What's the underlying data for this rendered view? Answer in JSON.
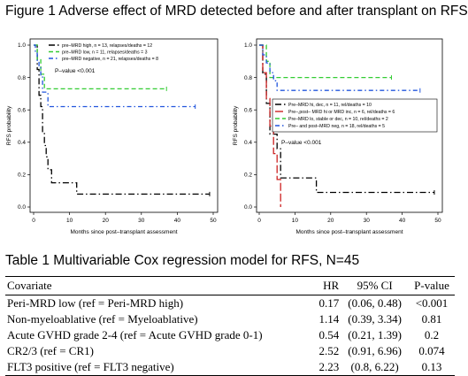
{
  "figure": {
    "title": "Figure 1  Adverse effect of MRD detected before and after transplant on RFS"
  },
  "chart_data": [
    {
      "type": "line",
      "subtype": "kaplan-meier",
      "title": "",
      "xlabel": "Months since post–transplant assessment",
      "ylabel": "RFS probability",
      "xlim": [
        0,
        50
      ],
      "ylim": [
        0,
        1.0
      ],
      "xticks": [
        "0",
        "10",
        "20",
        "30",
        "40",
        "50"
      ],
      "yticks": [
        "0.0",
        "0.2",
        "0.4",
        "0.6",
        "0.8",
        "1.0"
      ],
      "legend_position": "top",
      "pvalue_text": "P–value <0.001",
      "series": [
        {
          "name": "pre–MRD high,  n = 13, relapses/deaths = 12",
          "color": "#000000",
          "dash": "long-dash-dot",
          "points": [
            [
              0,
              1.0
            ],
            [
              1,
              1.0
            ],
            [
              1,
              0.85
            ],
            [
              1.5,
              0.85
            ],
            [
              1.5,
              0.69
            ],
            [
              2,
              0.69
            ],
            [
              2,
              0.62
            ],
            [
              2.5,
              0.62
            ],
            [
              2.5,
              0.46
            ],
            [
              3,
              0.46
            ],
            [
              3,
              0.38
            ],
            [
              3.5,
              0.38
            ],
            [
              3.5,
              0.31
            ],
            [
              4,
              0.31
            ],
            [
              4,
              0.23
            ],
            [
              5,
              0.23
            ],
            [
              5,
              0.15
            ],
            [
              12,
              0.15
            ],
            [
              12,
              0.08
            ],
            [
              49,
              0.08
            ]
          ]
        },
        {
          "name": "pre–MRD low,  n = 11, relapses/deaths = 3",
          "color": "#33cc33",
          "dash": "dashed",
          "points": [
            [
              0,
              1.0
            ],
            [
              1,
              1.0
            ],
            [
              1,
              0.91
            ],
            [
              2,
              0.91
            ],
            [
              2,
              0.82
            ],
            [
              3,
              0.82
            ],
            [
              3,
              0.73
            ],
            [
              37,
              0.73
            ]
          ]
        },
        {
          "name": "pre–MRD negative,  n = 21, relapses/deaths = 8",
          "color": "#2255dd",
          "dash": "dash-dot",
          "points": [
            [
              0,
              1.0
            ],
            [
              0.5,
              1.0
            ],
            [
              0.5,
              0.95
            ],
            [
              1,
              0.95
            ],
            [
              1,
              0.9
            ],
            [
              1.5,
              0.9
            ],
            [
              1.5,
              0.86
            ],
            [
              2,
              0.86
            ],
            [
              2,
              0.81
            ],
            [
              2.5,
              0.81
            ],
            [
              2.5,
              0.71
            ],
            [
              4,
              0.71
            ],
            [
              4,
              0.62
            ],
            [
              45,
              0.62
            ]
          ]
        }
      ]
    },
    {
      "type": "line",
      "subtype": "kaplan-meier",
      "title": "",
      "xlabel": "Months since post–transplant assessment",
      "ylabel": "RFS probability",
      "xlim": [
        0,
        50
      ],
      "ylim": [
        0,
        1.0
      ],
      "xticks": [
        "0",
        "10",
        "20",
        "30",
        "40",
        "50"
      ],
      "yticks": [
        "0.0",
        "0.2",
        "0.4",
        "0.6",
        "0.8",
        "1.0"
      ],
      "legend_position": "middle-right",
      "pvalue_text": "P–value <0.001",
      "series": [
        {
          "name": "Pre–MRD hi, dec,  n = 11, rel/deaths = 10",
          "color": "#000000",
          "dash": "long-dash-dot",
          "points": [
            [
              0,
              1.0
            ],
            [
              1,
              1.0
            ],
            [
              1,
              0.82
            ],
            [
              2,
              0.82
            ],
            [
              2,
              0.64
            ],
            [
              3,
              0.64
            ],
            [
              3,
              0.45
            ],
            [
              5,
              0.45
            ],
            [
              5,
              0.36
            ],
            [
              6,
              0.36
            ],
            [
              6,
              0.18
            ],
            [
              16,
              0.18
            ],
            [
              16,
              0.09
            ],
            [
              49,
              0.09
            ]
          ]
        },
        {
          "name": "Pre–,post– MRD hi or MRD inc,  n = 6, rel/deaths = 6",
          "color": "#cc2222",
          "dash": "long-dash",
          "points": [
            [
              0,
              1.0
            ],
            [
              1,
              1.0
            ],
            [
              1,
              0.83
            ],
            [
              2,
              0.83
            ],
            [
              2,
              0.67
            ],
            [
              3,
              0.67
            ],
            [
              3,
              0.5
            ],
            [
              4,
              0.5
            ],
            [
              4,
              0.33
            ],
            [
              5,
              0.33
            ],
            [
              5,
              0.17
            ],
            [
              6,
              0.17
            ],
            [
              6,
              0.0
            ]
          ]
        },
        {
          "name": "Pre–MRD lo, stable or dec,  n = 10, rel/deaths = 2",
          "color": "#33cc33",
          "dash": "dashed",
          "points": [
            [
              0,
              1.0
            ],
            [
              2,
              1.0
            ],
            [
              2,
              0.9
            ],
            [
              3,
              0.9
            ],
            [
              3,
              0.8
            ],
            [
              37,
              0.8
            ]
          ]
        },
        {
          "name": "Pre– and post–MRD neg,  n = 18, rel/deaths = 5",
          "color": "#2255dd",
          "dash": "dash-dot",
          "points": [
            [
              0,
              1.0
            ],
            [
              1,
              1.0
            ],
            [
              1,
              0.94
            ],
            [
              2,
              0.94
            ],
            [
              2,
              0.89
            ],
            [
              3,
              0.89
            ],
            [
              3,
              0.83
            ],
            [
              4,
              0.83
            ],
            [
              4,
              0.78
            ],
            [
              5,
              0.78
            ],
            [
              5,
              0.72
            ],
            [
              45,
              0.72
            ]
          ]
        }
      ]
    }
  ],
  "table": {
    "title": "Table 1 Multivariable Cox regression model for RFS, N=45",
    "headers": {
      "covariate": "Covariate",
      "hr": "HR",
      "ci": "95% CI",
      "p": "P-value"
    },
    "rows": [
      {
        "covariate": "Peri-MRD low (ref = Peri-MRD high)",
        "hr": "0.17",
        "ci": "(0.06, 0.48)",
        "p": "<0.001"
      },
      {
        "covariate": "Non-myeloablative (ref = Myeloablative)",
        "hr": "1.14",
        "ci": "(0.39, 3.34)",
        "p": "0.81"
      },
      {
        "covariate": "Acute GVHD grade 2-4 (ref = Acute GVHD grade 0-1)",
        "hr": "0.54",
        "ci": "(0.21, 1.39)",
        "p": "0.2"
      },
      {
        "covariate": "CR2/3 (ref = CR1)",
        "hr": "2.52",
        "ci": "(0.91, 6.96)",
        "p": "0.074"
      },
      {
        "covariate": "FLT3 positive (ref = FLT3 negative)",
        "hr": "2.23",
        "ci": "(0.8, 6.22)",
        "p": "0.13"
      }
    ]
  }
}
